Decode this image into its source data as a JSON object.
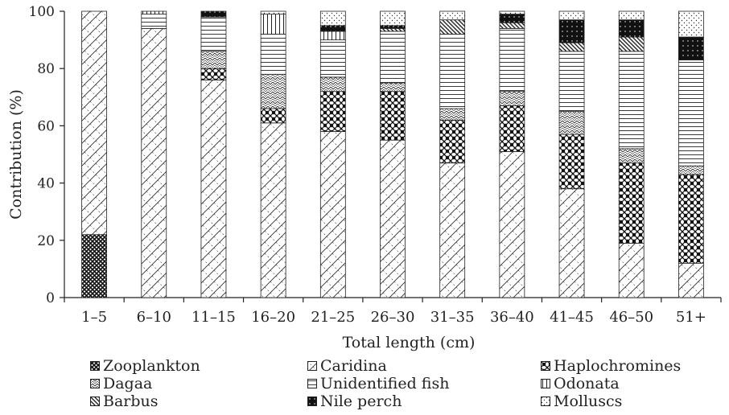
{
  "chart_data": {
    "type": "bar",
    "stacked": true,
    "xlabel": "Total length (cm)",
    "ylabel": "Contribution (%)",
    "ylim": [
      0,
      100
    ],
    "yticks": [
      "0",
      "20",
      "40",
      "60",
      "80",
      "100"
    ],
    "categories": [
      "1–5",
      "6–10",
      "11–15",
      "16–20",
      "21–25",
      "26–30",
      "31–35",
      "36–40",
      "41–45",
      "46–50",
      "51+"
    ],
    "grid": false,
    "legend_position": "bottom",
    "series": [
      {
        "name": "Zooplankton",
        "pattern": "zooplankton",
        "values": [
          22,
          0,
          0,
          0,
          0,
          0,
          0,
          0,
          0,
          0,
          0
        ]
      },
      {
        "name": "Caridina",
        "pattern": "caridina",
        "values": [
          78,
          94,
          76,
          61,
          58,
          55,
          47,
          51,
          38,
          19,
          12
        ]
      },
      {
        "name": "Haplochromines",
        "pattern": "haplochromines",
        "values": [
          0,
          0,
          4,
          5,
          14,
          17,
          15,
          16,
          19,
          28,
          31
        ]
      },
      {
        "name": "Dagaa",
        "pattern": "dagaa",
        "values": [
          0,
          0,
          6,
          12,
          5,
          3,
          4,
          5,
          8,
          5,
          3
        ]
      },
      {
        "name": "Unidentified fish",
        "pattern": "unidentified",
        "values": [
          0,
          5,
          12,
          14,
          13,
          18,
          26,
          22,
          21,
          34,
          37
        ]
      },
      {
        "name": "Odonata",
        "pattern": "odonata",
        "values": [
          0,
          1,
          0,
          7,
          3,
          0,
          0,
          0,
          0,
          0,
          0
        ]
      },
      {
        "name": "Barbus",
        "pattern": "barbus",
        "values": [
          0,
          0,
          0,
          0,
          0,
          1,
          5,
          2,
          3,
          5,
          0
        ]
      },
      {
        "name": "Nile perch",
        "pattern": "nileperch",
        "values": [
          0,
          0,
          2,
          0,
          2,
          1,
          0,
          3,
          8,
          6,
          8
        ]
      },
      {
        "name": "Molluscs",
        "pattern": "molluscs",
        "values": [
          0,
          0,
          0,
          1,
          5,
          5,
          3,
          1,
          3,
          3,
          9
        ]
      }
    ]
  }
}
